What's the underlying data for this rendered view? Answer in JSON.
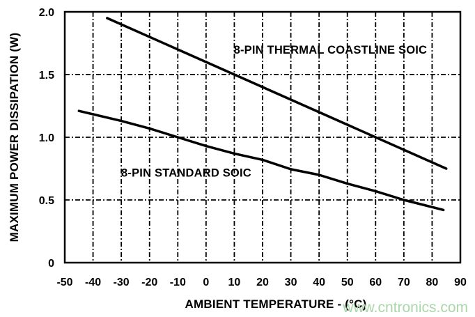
{
  "watermark": {
    "text": "www.cntronics.com",
    "color": "#aad6aa"
  },
  "chart_data": {
    "type": "line",
    "title": "",
    "xlabel": "AMBIENT TEMPERATURE - (°C)",
    "ylabel": "MAXIMUM POWER DISSIPATION (W)",
    "xlim": [
      -50,
      90
    ],
    "ylim": [
      0,
      2
    ],
    "x_ticks": [
      -50,
      -40,
      -30,
      -20,
      -10,
      0,
      10,
      20,
      30,
      40,
      50,
      60,
      70,
      80,
      90
    ],
    "x_tick_labels": [
      "-50",
      "-40",
      "-30",
      "-20",
      "-10",
      "0",
      "10",
      "20",
      "30",
      "40",
      "50",
      "60",
      "70",
      "80",
      "90"
    ],
    "y_ticks": [
      0,
      0.5,
      1,
      1.5,
      2
    ],
    "y_tick_labels": [
      "0",
      "0.5",
      "1.0",
      "1.5",
      "2.0"
    ],
    "grid": true,
    "legend_position": "inline-labels",
    "axis_color": "#000000",
    "series": [
      {
        "name": "8-PIN THERMAL COASTLINE SOIC",
        "color": "#000000",
        "points": [
          [
            -35,
            1.95
          ],
          [
            0,
            1.6
          ],
          [
            40,
            1.2
          ],
          [
            85,
            0.75
          ]
        ],
        "label_at": [
          44,
          1.7
        ]
      },
      {
        "name": "8-PIN STANDARD SOIC",
        "color": "#000000",
        "points": [
          [
            -45,
            1.21
          ],
          [
            -30,
            1.13
          ],
          [
            -20,
            1.07
          ],
          [
            -10,
            1.0
          ],
          [
            0,
            0.93
          ],
          [
            10,
            0.87
          ],
          [
            20,
            0.82
          ],
          [
            30,
            0.745
          ],
          [
            40,
            0.7
          ],
          [
            50,
            0.63
          ],
          [
            60,
            0.57
          ],
          [
            70,
            0.5
          ],
          [
            84,
            0.42
          ]
        ],
        "label_at": [
          -7,
          0.72
        ]
      }
    ]
  }
}
